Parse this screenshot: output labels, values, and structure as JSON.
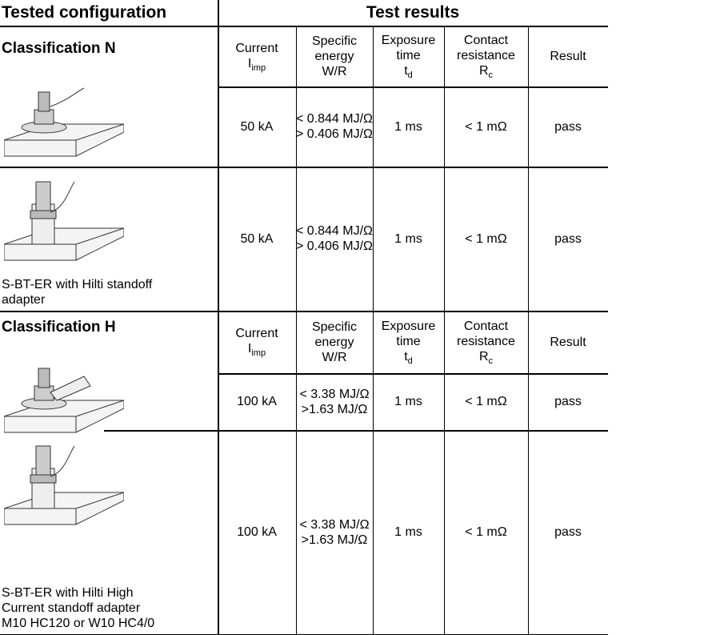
{
  "header": {
    "left": "Tested configuration",
    "right": "Test results"
  },
  "sections": [
    {
      "title": "Classification N",
      "columns": [
        {
          "lines": [
            "Current"
          ],
          "symbol": "I",
          "subscript": "imp"
        },
        {
          "lines": [
            "Specific",
            "energy",
            "W/R"
          ]
        },
        {
          "lines": [
            "Exposure",
            "time"
          ],
          "symbol": "t",
          "subscript": "d"
        },
        {
          "lines": [
            "Contact",
            "resistance"
          ],
          "symbol": "R",
          "subscript": "c"
        },
        {
          "lines": [
            "Result"
          ]
        }
      ],
      "rows": [
        {
          "current": "50 kA",
          "energy": [
            "< 0.844 MJ/Ω",
            "> 0.406 MJ/Ω"
          ],
          "time": "1 ms",
          "resistance": "< 1 mΩ",
          "result": "pass"
        },
        {
          "caption": [
            "S-BT-ER with Hilti standoff",
            "adapter"
          ],
          "current": "50 kA",
          "energy": [
            "< 0.844 MJ/Ω",
            "> 0.406 MJ/Ω"
          ],
          "time": "1 ms",
          "resistance": "< 1 mΩ",
          "result": "pass"
        }
      ]
    },
    {
      "title": "Classification H",
      "columns": [
        {
          "lines": [
            "Current"
          ],
          "symbol": "I",
          "subscript": "imp"
        },
        {
          "lines": [
            "Specific",
            "energy",
            "W/R"
          ]
        },
        {
          "lines": [
            "Exposure",
            "time"
          ],
          "symbol": "t",
          "subscript": "d"
        },
        {
          "lines": [
            "Contact",
            "resistance"
          ],
          "symbol": "R",
          "subscript": "c"
        },
        {
          "lines": [
            "Result"
          ]
        }
      ],
      "rows": [
        {
          "current": "100 kA",
          "energy": [
            "< 3.38 MJ/Ω",
            ">1.63 MJ/Ω"
          ],
          "time": "1 ms",
          "resistance": "< 1 mΩ",
          "result": "pass"
        },
        {
          "caption": [
            "S-BT-ER with Hilti High",
            "Current standoff adapter",
            "M10 HC120 or W10 HC4/0"
          ],
          "current": "100 kA",
          "energy": [
            "< 3.38 MJ/Ω",
            ">1.63 MJ/Ω"
          ],
          "time": "1 ms",
          "resistance": "< 1 mΩ",
          "result": "pass"
        }
      ]
    }
  ]
}
